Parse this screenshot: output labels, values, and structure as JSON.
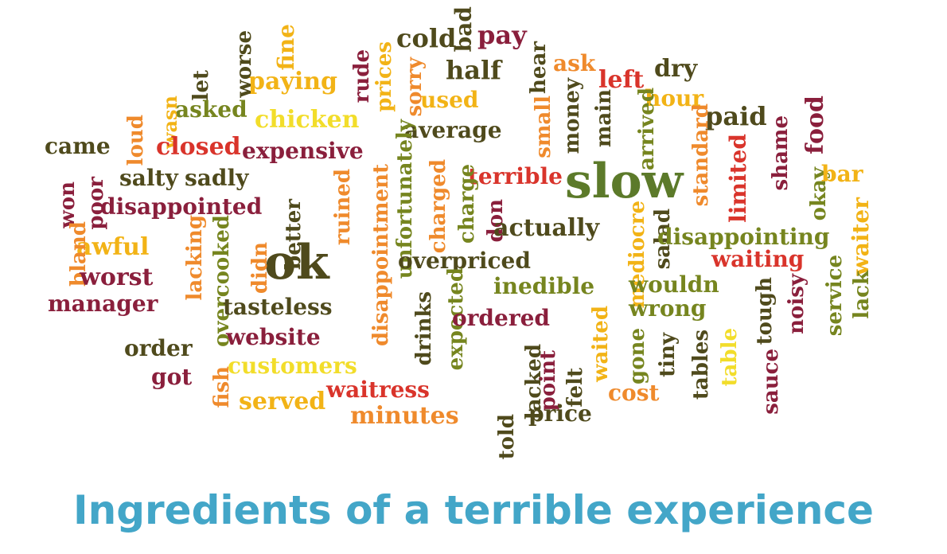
{
  "caption": "Ingredients of a terrible experience",
  "palette": {
    "dark_olive": "#4f4a1c",
    "olive": "#76851f",
    "green": "#5c7a2a",
    "maroon": "#8a1f3c",
    "red": "#d9342b",
    "orange": "#ef8a2c",
    "gold": "#f2b316",
    "yellow": "#f2dd2a",
    "caption_blue": "#43a6c8"
  },
  "words": [
    {
      "text": "slow",
      "color": "green",
      "emphasis": "largest"
    },
    {
      "text": "ok",
      "color": "dark_olive",
      "emphasis": "large"
    },
    {
      "text": "cold",
      "color": "dark_olive"
    },
    {
      "text": "bad",
      "color": "dark_olive"
    },
    {
      "text": "pay",
      "color": "maroon"
    },
    {
      "text": "half",
      "color": "dark_olive"
    },
    {
      "text": "hear",
      "color": "dark_olive"
    },
    {
      "text": "ask",
      "color": "orange"
    },
    {
      "text": "left",
      "color": "red"
    },
    {
      "text": "dry",
      "color": "dark_olive"
    },
    {
      "text": "hour",
      "color": "gold"
    },
    {
      "text": "paid",
      "color": "dark_olive"
    },
    {
      "text": "food",
      "color": "maroon"
    },
    {
      "text": "okay",
      "color": "olive"
    },
    {
      "text": "bar",
      "color": "gold"
    },
    {
      "text": "waiter",
      "color": "gold"
    },
    {
      "text": "shame",
      "color": "maroon"
    },
    {
      "text": "limited",
      "color": "red"
    },
    {
      "text": "standard",
      "color": "orange"
    },
    {
      "text": "arrived",
      "color": "olive"
    },
    {
      "text": "main",
      "color": "dark_olive"
    },
    {
      "text": "money",
      "color": "dark_olive"
    },
    {
      "text": "small",
      "color": "orange"
    },
    {
      "text": "terrible",
      "color": "red"
    },
    {
      "text": "average",
      "color": "dark_olive"
    },
    {
      "text": "used",
      "color": "gold"
    },
    {
      "text": "sorry",
      "color": "orange"
    },
    {
      "text": "prices",
      "color": "gold"
    },
    {
      "text": "rude",
      "color": "maroon"
    },
    {
      "text": "fine",
      "color": "gold"
    },
    {
      "text": "paying",
      "color": "gold"
    },
    {
      "text": "worse",
      "color": "dark_olive"
    },
    {
      "text": "let",
      "color": "dark_olive"
    },
    {
      "text": "asked",
      "color": "olive"
    },
    {
      "text": "wasn",
      "color": "gold"
    },
    {
      "text": "chicken",
      "color": "yellow"
    },
    {
      "text": "came",
      "color": "dark_olive"
    },
    {
      "text": "loud",
      "color": "orange"
    },
    {
      "text": "closed",
      "color": "red"
    },
    {
      "text": "expensive",
      "color": "maroon"
    },
    {
      "text": "unfortunately",
      "color": "olive"
    },
    {
      "text": "charged",
      "color": "orange"
    },
    {
      "text": "charge",
      "color": "olive"
    },
    {
      "text": "don",
      "color": "maroon"
    },
    {
      "text": "actually",
      "color": "dark_olive"
    },
    {
      "text": "salad",
      "color": "dark_olive"
    },
    {
      "text": "disappointing",
      "color": "olive"
    },
    {
      "text": "waiting",
      "color": "red"
    },
    {
      "text": "service",
      "color": "olive"
    },
    {
      "text": "lack",
      "color": "olive"
    },
    {
      "text": "salty",
      "color": "dark_olive"
    },
    {
      "text": "sadly",
      "color": "dark_olive"
    },
    {
      "text": "won",
      "color": "maroon"
    },
    {
      "text": "poor",
      "color": "maroon"
    },
    {
      "text": "disappointed",
      "color": "maroon"
    },
    {
      "text": "better",
      "color": "dark_olive"
    },
    {
      "text": "ruined",
      "color": "orange"
    },
    {
      "text": "disappointment",
      "color": "orange"
    },
    {
      "text": "overpriced",
      "color": "dark_olive"
    },
    {
      "text": "mediocre",
      "color": "gold"
    },
    {
      "text": "wouldn",
      "color": "olive"
    },
    {
      "text": "noisy",
      "color": "maroon"
    },
    {
      "text": "awful",
      "color": "gold"
    },
    {
      "text": "bland",
      "color": "orange"
    },
    {
      "text": "worst",
      "color": "maroon"
    },
    {
      "text": "manager",
      "color": "maroon"
    },
    {
      "text": "lacking",
      "color": "orange"
    },
    {
      "text": "overcooked",
      "color": "olive"
    },
    {
      "text": "didn",
      "color": "orange"
    },
    {
      "text": "tasteless",
      "color": "dark_olive"
    },
    {
      "text": "inedible",
      "color": "olive"
    },
    {
      "text": "wrong",
      "color": "olive"
    },
    {
      "text": "tough",
      "color": "dark_olive"
    },
    {
      "text": "order",
      "color": "dark_olive"
    },
    {
      "text": "website",
      "color": "maroon"
    },
    {
      "text": "drinks",
      "color": "dark_olive"
    },
    {
      "text": "expected",
      "color": "olive"
    },
    {
      "text": "ordered",
      "color": "maroon"
    },
    {
      "text": "waited",
      "color": "gold"
    },
    {
      "text": "gone",
      "color": "olive"
    },
    {
      "text": "tiny",
      "color": "dark_olive"
    },
    {
      "text": "tables",
      "color": "dark_olive"
    },
    {
      "text": "table",
      "color": "yellow"
    },
    {
      "text": "sauce",
      "color": "maroon"
    },
    {
      "text": "got",
      "color": "maroon"
    },
    {
      "text": "fish",
      "color": "orange"
    },
    {
      "text": "customers",
      "color": "yellow"
    },
    {
      "text": "waitress",
      "color": "red"
    },
    {
      "text": "point",
      "color": "maroon"
    },
    {
      "text": "felt",
      "color": "dark_olive"
    },
    {
      "text": "cost",
      "color": "orange"
    },
    {
      "text": "served",
      "color": "gold"
    },
    {
      "text": "minutes",
      "color": "orange"
    },
    {
      "text": "told",
      "color": "dark_olive"
    },
    {
      "text": "lacked",
      "color": "dark_olive"
    },
    {
      "text": "price",
      "color": "dark_olive"
    }
  ]
}
